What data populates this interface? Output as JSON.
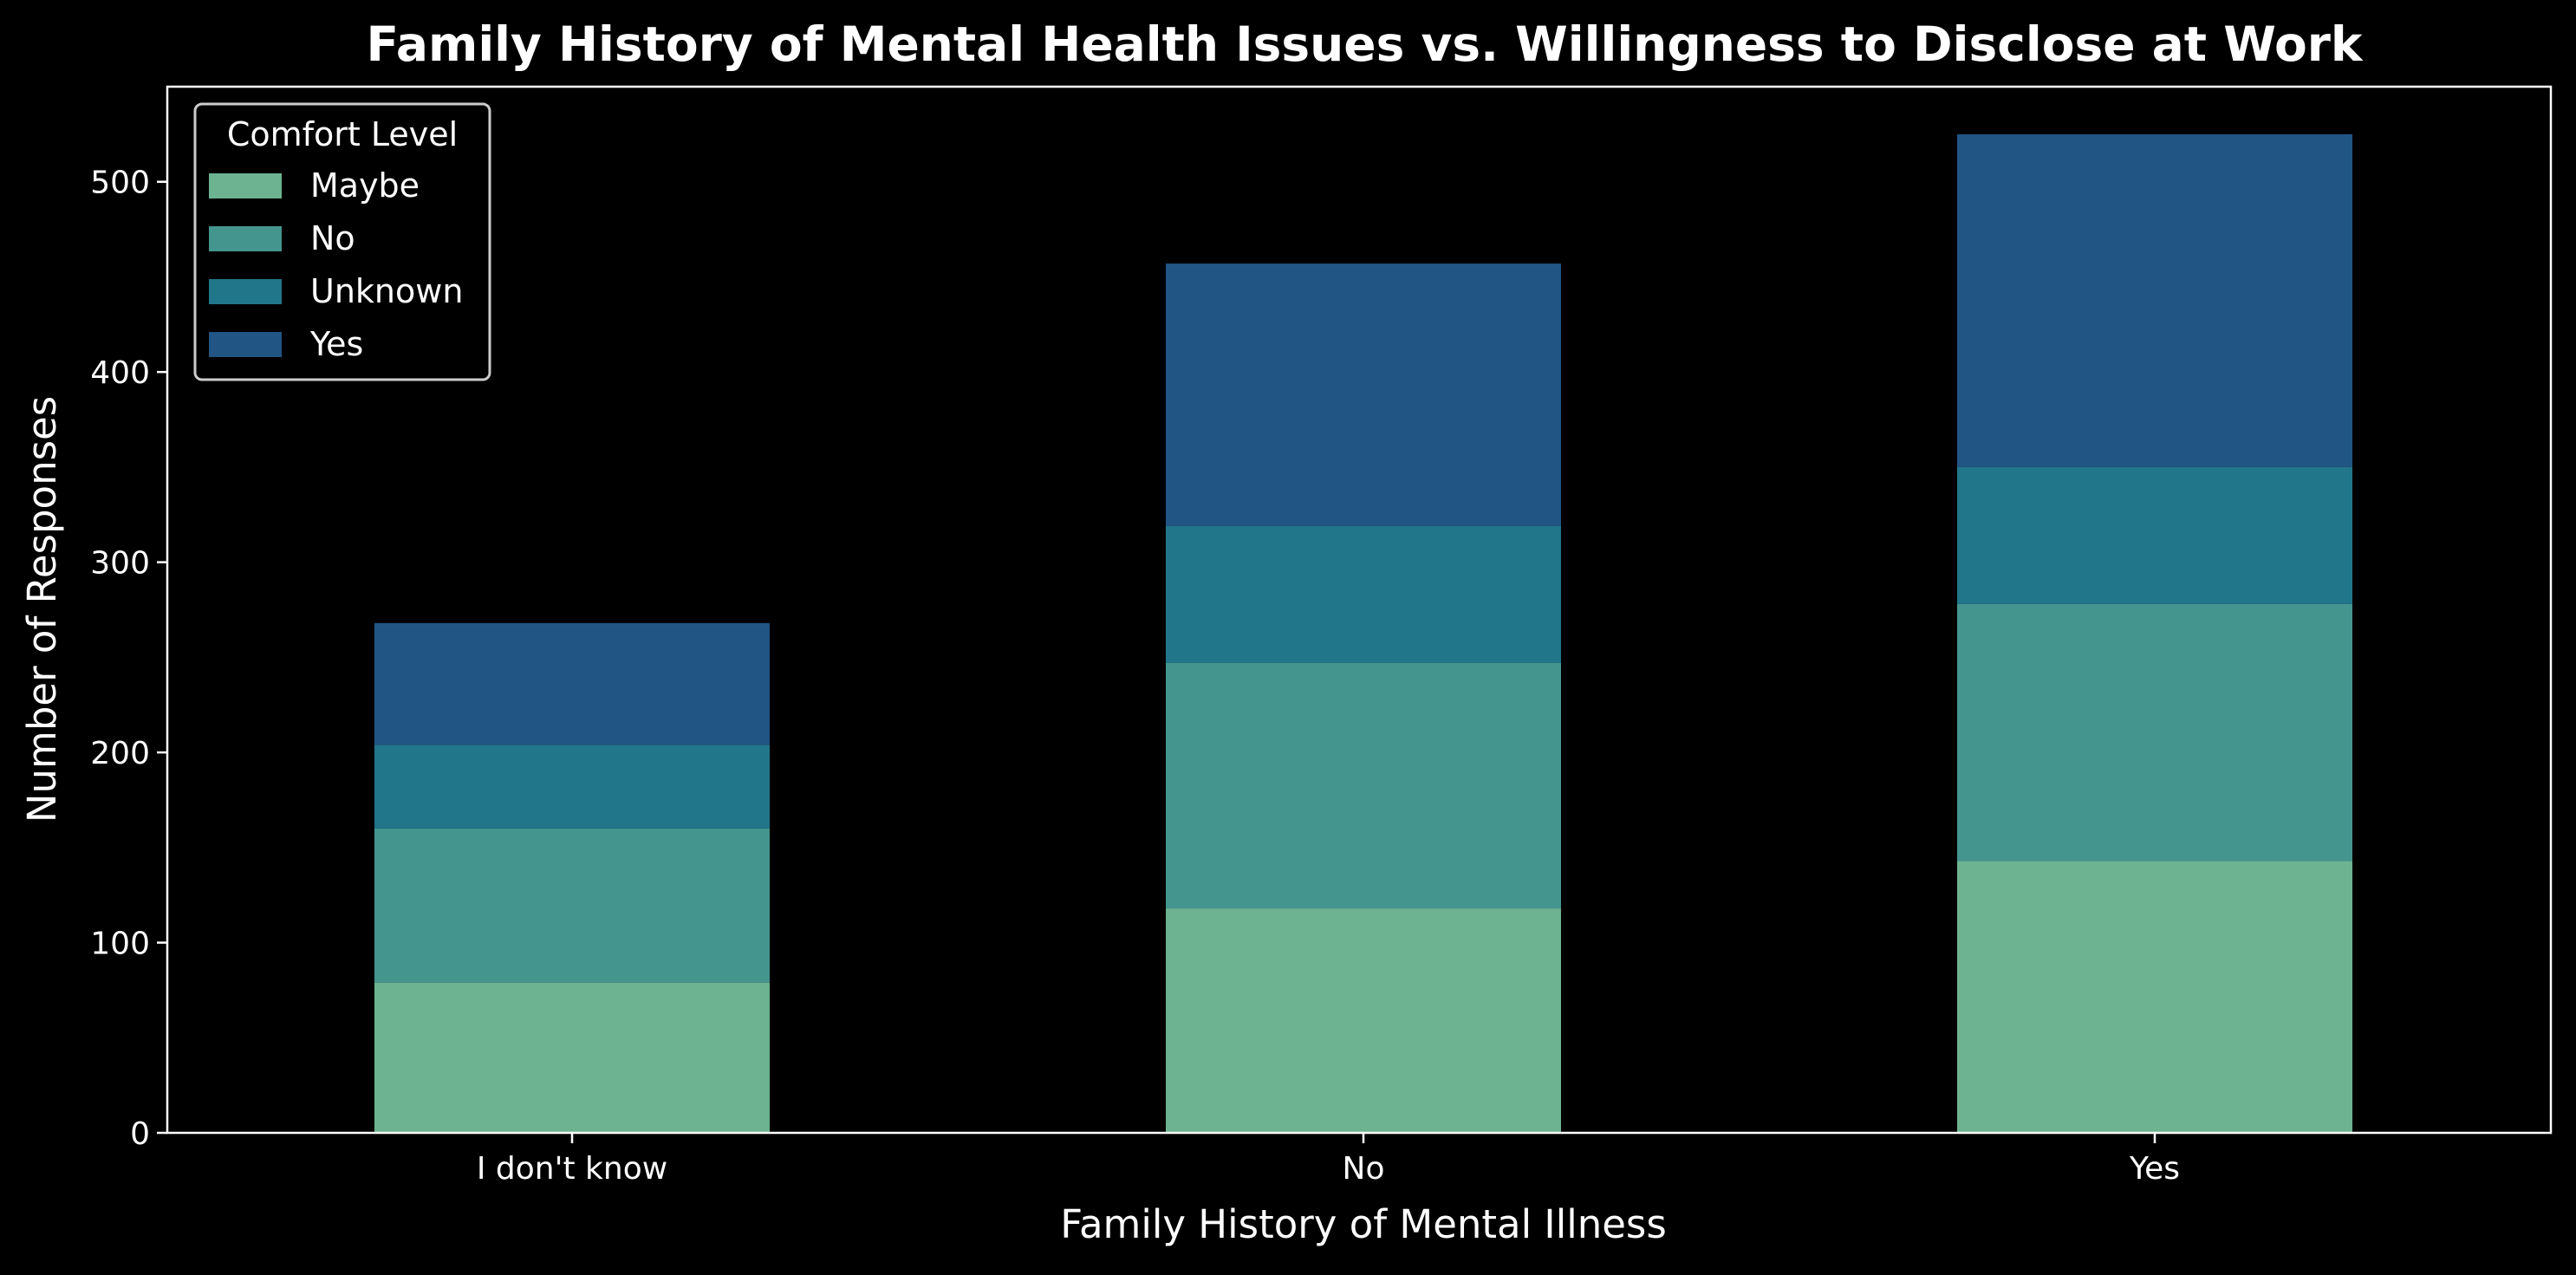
{
  "chart_data": {
    "type": "bar",
    "stacked": true,
    "title": "Family History of Mental Health Issues vs. Willingness to Disclose at Work",
    "xlabel": "Family History of Mental Illness",
    "ylabel": "Number of Responses",
    "categories": [
      "I don't know",
      "No",
      "Yes"
    ],
    "ylim": [
      0,
      550
    ],
    "yticks": [
      0,
      100,
      200,
      300,
      400,
      500
    ],
    "grid": false,
    "legend": {
      "title": "Comfort Level",
      "position": "top-left"
    },
    "series": [
      {
        "name": "Maybe",
        "color": "#6db391",
        "values": [
          79,
          118,
          143
        ]
      },
      {
        "name": "No",
        "color": "#45958f",
        "values": [
          81,
          129,
          135
        ]
      },
      {
        "name": "Unknown",
        "color": "#22768a",
        "values": [
          44,
          72,
          72
        ]
      },
      {
        "name": "Yes",
        "color": "#215584",
        "values": [
          64,
          138,
          175
        ]
      }
    ],
    "background": "#000000",
    "foreground": "#ffffff"
  }
}
